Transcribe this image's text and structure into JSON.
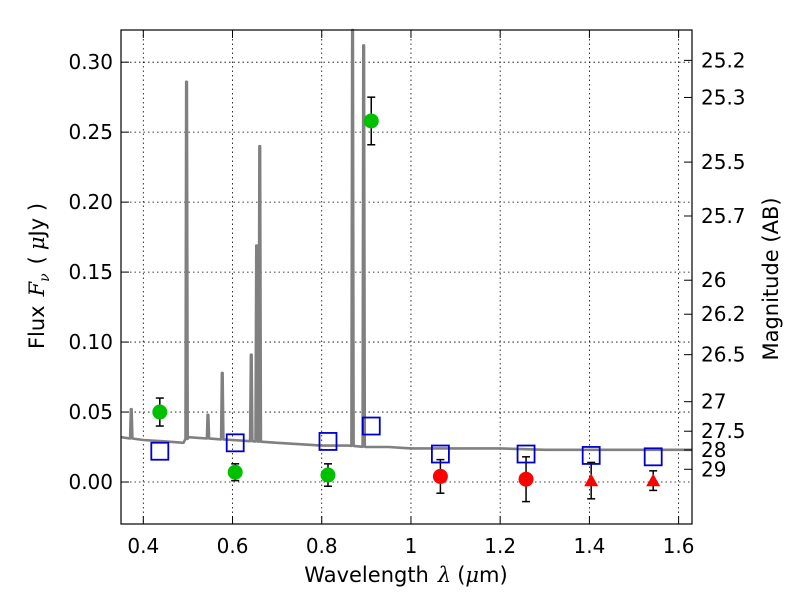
{
  "chart_data": {
    "type": "scatter",
    "xlabel": "Wavelength",
    "xlabel_symbol": "λ",
    "xlabel_unit_open": "(",
    "xlabel_unit_mu": "μ",
    "xlabel_unit_rest": "m)",
    "ylabel": "Flux",
    "ylabel_symbol": "F",
    "ylabel_symbol_sub": "ν",
    "ylabel_unit_open": "(",
    "ylabel_unit_mu": "μ",
    "ylabel_unit_rest": "Jy )",
    "y2label": "Magnitude (AB)",
    "xlim": [
      0.35,
      1.63
    ],
    "ylim": [
      -0.03,
      0.323
    ],
    "grid": true,
    "grid_style": "dotted",
    "x_ticks": [
      0.4,
      0.6,
      0.8,
      1.0,
      1.2,
      1.4,
      1.6
    ],
    "x_tick_labels": [
      "0.4",
      "0.6",
      "0.8",
      "1",
      "1.2",
      "1.4",
      "1.6"
    ],
    "y_ticks": [
      0.0,
      0.05,
      0.1,
      0.15,
      0.2,
      0.25,
      0.3
    ],
    "y_tick_labels": [
      "0.00",
      "0.05",
      "0.10",
      "0.15",
      "0.20",
      "0.25",
      "0.30"
    ],
    "y2_ticks": [
      {
        "label": "25.2",
        "flux": 0.3013
      },
      {
        "label": "25.3",
        "flux": 0.2748
      },
      {
        "label": "25.5",
        "flux": 0.2286
      },
      {
        "label": "25.7",
        "flux": 0.1901
      },
      {
        "label": "26",
        "flux": 0.1442
      },
      {
        "label": "26.2",
        "flux": 0.1199
      },
      {
        "label": "26.5",
        "flux": 0.091
      },
      {
        "label": "27",
        "flux": 0.0574
      },
      {
        "label": "27.5",
        "flux": 0.0363
      },
      {
        "label": "28",
        "flux": 0.0229
      },
      {
        "label": "29",
        "flux": 0.0091
      }
    ],
    "colors": {
      "sed": "#808080",
      "green": "#00c000",
      "red": "#ff0000",
      "blue": "#0000cc",
      "errorbar": "#000000"
    },
    "series": [
      {
        "kind": "line",
        "color": "#808080",
        "continuum": [
          [
            0.35,
            0.032
          ],
          [
            0.4,
            0.03
          ],
          [
            0.45,
            0.029
          ],
          [
            0.49,
            0.028
          ],
          [
            0.5,
            0.032
          ],
          [
            0.55,
            0.031
          ],
          [
            0.6,
            0.03
          ],
          [
            0.65,
            0.029
          ],
          [
            0.7,
            0.028
          ],
          [
            0.75,
            0.027
          ],
          [
            0.8,
            0.026
          ],
          [
            0.86,
            0.026
          ],
          [
            0.9,
            0.025
          ],
          [
            0.95,
            0.025
          ],
          [
            1.0,
            0.024
          ],
          [
            1.1,
            0.024
          ],
          [
            1.2,
            0.024
          ],
          [
            1.3,
            0.023
          ],
          [
            1.4,
            0.023
          ],
          [
            1.5,
            0.023
          ],
          [
            1.63,
            0.023
          ]
        ],
        "emission_lines": [
          {
            "x": 0.373,
            "peak": 0.052
          },
          {
            "x": 0.497,
            "peak": 0.286
          },
          {
            "x": 0.545,
            "peak": 0.048
          },
          {
            "x": 0.577,
            "peak": 0.078
          },
          {
            "x": 0.642,
            "peak": 0.091
          },
          {
            "x": 0.654,
            "peak": 0.169
          },
          {
            "x": 0.661,
            "peak": 0.24
          },
          {
            "x": 0.869,
            "peak": 0.323
          },
          {
            "x": 0.894,
            "peak": 0.312
          }
        ]
      },
      {
        "kind": "points",
        "marker": "circle",
        "color": "#00c000",
        "points": [
          {
            "x": 0.437,
            "y": 0.05,
            "err": 0.01
          },
          {
            "x": 0.606,
            "y": 0.007,
            "err": 0.006
          },
          {
            "x": 0.814,
            "y": 0.005,
            "err": 0.008
          },
          {
            "x": 0.911,
            "y": 0.258,
            "err": 0.017
          }
        ]
      },
      {
        "kind": "points",
        "marker": "circle",
        "color": "#ff0000",
        "points": [
          {
            "x": 1.066,
            "y": 0.004,
            "err": 0.012
          },
          {
            "x": 1.258,
            "y": 0.002,
            "err": 0.016
          }
        ]
      },
      {
        "kind": "points",
        "marker": "triangle",
        "color": "#ff0000",
        "points": [
          {
            "x": 1.404,
            "y": 0.001,
            "err": 0.013
          },
          {
            "x": 1.543,
            "y": 0.001,
            "err": 0.007
          }
        ]
      },
      {
        "kind": "points",
        "marker": "open-square",
        "color": "#0000cc",
        "points": [
          {
            "x": 0.437,
            "y": 0.022
          },
          {
            "x": 0.606,
            "y": 0.028
          },
          {
            "x": 0.814,
            "y": 0.029
          },
          {
            "x": 0.911,
            "y": 0.04
          },
          {
            "x": 1.066,
            "y": 0.02
          },
          {
            "x": 1.258,
            "y": 0.02
          },
          {
            "x": 1.404,
            "y": 0.019
          },
          {
            "x": 1.543,
            "y": 0.018
          }
        ]
      }
    ]
  }
}
